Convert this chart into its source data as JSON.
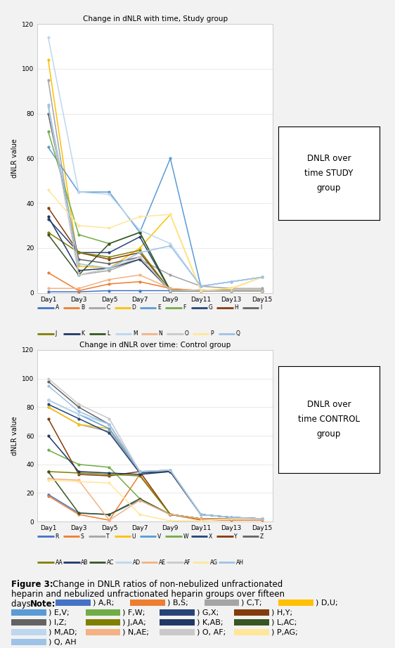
{
  "days": [
    "Day1",
    "Day3",
    "Day5",
    "Day7",
    "Day9",
    "Day11",
    "Day13",
    "Day15"
  ],
  "study_title": "Change in dNLR with time, Study group",
  "control_title": "Change in dNLR over time: Control group",
  "ylabel": "dNLR value",
  "study_legend_text": "DNLR over\ntime STUDY\ngroup",
  "control_legend_text": "DNLR over\ntime CONTROL\ngroup",
  "study_series": [
    {
      "label": "A",
      "color": "#4472C4",
      "data": [
        0.5,
        0.5,
        1,
        1,
        1,
        1,
        1,
        1
      ]
    },
    {
      "label": "B",
      "color": "#ED7D31",
      "data": [
        9,
        1,
        4,
        5,
        2,
        1,
        1,
        1
      ]
    },
    {
      "label": "C",
      "color": "#A5A5A5",
      "data": [
        95,
        8,
        10,
        15,
        8,
        3,
        2,
        2
      ]
    },
    {
      "label": "D",
      "color": "#FFC000",
      "data": [
        104,
        12,
        11,
        20,
        35,
        1,
        2,
        7
      ]
    },
    {
      "label": "E",
      "color": "#5B9BD5",
      "data": [
        65,
        45,
        45,
        27,
        60,
        3,
        5,
        7
      ]
    },
    {
      "label": "F",
      "color": "#70AD47",
      "data": [
        72,
        26,
        22,
        27,
        1,
        1,
        1,
        1
      ]
    },
    {
      "label": "G",
      "color": "#264478",
      "data": [
        33,
        18,
        18,
        25,
        1,
        1,
        1,
        1
      ]
    },
    {
      "label": "H",
      "color": "#843C0C",
      "data": [
        38,
        18,
        15,
        18,
        1,
        1,
        1,
        1
      ]
    },
    {
      "label": "I",
      "color": "#636363",
      "data": [
        80,
        15,
        13,
        16,
        1,
        1,
        1,
        1
      ]
    },
    {
      "label": "J",
      "color": "#808000",
      "data": [
        27,
        18,
        16,
        19,
        1,
        1,
        1,
        1
      ]
    },
    {
      "label": "K",
      "color": "#203864",
      "data": [
        34,
        10,
        11,
        15,
        1,
        1,
        1,
        1
      ]
    },
    {
      "label": "L",
      "color": "#375623",
      "data": [
        26,
        8,
        22,
        27,
        1,
        1,
        1,
        1
      ]
    },
    {
      "label": "M",
      "color": "#BDD7EE",
      "data": [
        114,
        45,
        44,
        28,
        22,
        3,
        5,
        7
      ]
    },
    {
      "label": "N",
      "color": "#F4B183",
      "data": [
        2,
        2,
        6,
        8,
        2,
        1,
        1,
        1
      ]
    },
    {
      "label": "O",
      "color": "#C9C9C9",
      "data": [
        83,
        8,
        11,
        16,
        1,
        1,
        1,
        1
      ]
    },
    {
      "label": "P",
      "color": "#FFE699",
      "data": [
        46,
        30,
        29,
        34,
        35,
        1,
        2,
        7
      ]
    },
    {
      "label": "Q",
      "color": "#9DC3E6",
      "data": [
        84,
        13,
        11,
        18,
        21,
        3,
        5,
        7
      ]
    }
  ],
  "control_series": [
    {
      "label": "R",
      "color": "#4472C4",
      "data": [
        19,
        6,
        5,
        15,
        5,
        2,
        2,
        2
      ]
    },
    {
      "label": "S",
      "color": "#ED7D31",
      "data": [
        18,
        5,
        1,
        33,
        5,
        1,
        1,
        1
      ]
    },
    {
      "label": "T",
      "color": "#A5A5A5",
      "data": [
        80,
        68,
        63,
        35,
        35,
        5,
        3,
        2
      ]
    },
    {
      "label": "U",
      "color": "#FFC000",
      "data": [
        80,
        68,
        65,
        35,
        35,
        5,
        3,
        2
      ]
    },
    {
      "label": "V",
      "color": "#5B9BD5",
      "data": [
        85,
        75,
        65,
        35,
        36,
        5,
        3,
        2
      ]
    },
    {
      "label": "W",
      "color": "#70AD47",
      "data": [
        50,
        40,
        38,
        16,
        5,
        2,
        2,
        2
      ]
    },
    {
      "label": "X",
      "color": "#264478",
      "data": [
        82,
        72,
        62,
        34,
        35,
        5,
        3,
        2
      ]
    },
    {
      "label": "Y",
      "color": "#843C0C",
      "data": [
        72,
        33,
        32,
        35,
        5,
        2,
        2,
        2
      ]
    },
    {
      "label": "Z",
      "color": "#636363",
      "data": [
        98,
        80,
        68,
        35,
        35,
        5,
        3,
        2
      ]
    },
    {
      "label": "AA",
      "color": "#808000",
      "data": [
        35,
        34,
        33,
        32,
        5,
        2,
        2,
        2
      ]
    },
    {
      "label": "AB",
      "color": "#203864",
      "data": [
        60,
        35,
        34,
        33,
        35,
        5,
        3,
        2
      ]
    },
    {
      "label": "AC",
      "color": "#375623",
      "data": [
        35,
        6,
        5,
        16,
        5,
        2,
        2,
        2
      ]
    },
    {
      "label": "AD",
      "color": "#BDD7EE",
      "data": [
        85,
        75,
        68,
        35,
        36,
        5,
        3,
        2
      ]
    },
    {
      "label": "AE",
      "color": "#F4B183",
      "data": [
        30,
        29,
        1,
        15,
        5,
        2,
        2,
        2
      ]
    },
    {
      "label": "AF",
      "color": "#C9C9C9",
      "data": [
        100,
        82,
        72,
        35,
        36,
        5,
        3,
        2
      ]
    },
    {
      "label": "AG",
      "color": "#FFE699",
      "data": [
        29,
        28,
        27,
        5,
        0.5,
        0.5,
        2,
        2
      ]
    },
    {
      "label": "AH",
      "color": "#9DC3E6",
      "data": [
        95,
        77,
        68,
        35,
        36,
        5,
        3,
        2
      ]
    }
  ],
  "note_items": [
    {
      "label": "A,R;",
      "color": "#4472C4"
    },
    {
      "label": "B,S;",
      "color": "#ED7D31"
    },
    {
      "label": "C,T;",
      "color": "#A5A5A5"
    },
    {
      "label": "D,U;",
      "color": "#FFC000"
    },
    {
      "label": "E,V;",
      "color": "#5B9BD5"
    },
    {
      "label": "F,W;",
      "color": "#70AD47"
    },
    {
      "label": "G,X;",
      "color": "#264478"
    },
    {
      "label": "H,Y;",
      "color": "#843C0C"
    },
    {
      "label": "I,Z;",
      "color": "#636363"
    },
    {
      "label": "J,AA;",
      "color": "#808000"
    },
    {
      "label": "K,AB;",
      "color": "#203864"
    },
    {
      "label": "L,AC;",
      "color": "#375623"
    },
    {
      "label": "M,AD;",
      "color": "#BDD7EE"
    },
    {
      "label": "N,AE;",
      "color": "#F4B183"
    },
    {
      "label": "O, AF;",
      "color": "#C9C9C9"
    },
    {
      "label": "P,AG;",
      "color": "#FFE699"
    },
    {
      "label": "Q, AH",
      "color": "#9DC3E6"
    }
  ],
  "bg_color": "#f2f2f2",
  "panel_bg": "white",
  "panel_border": "#cccccc",
  "grid_color": "#e0e0e0",
  "ylim": [
    0,
    120
  ],
  "yticks": [
    0,
    20,
    40,
    60,
    80,
    100,
    120
  ]
}
